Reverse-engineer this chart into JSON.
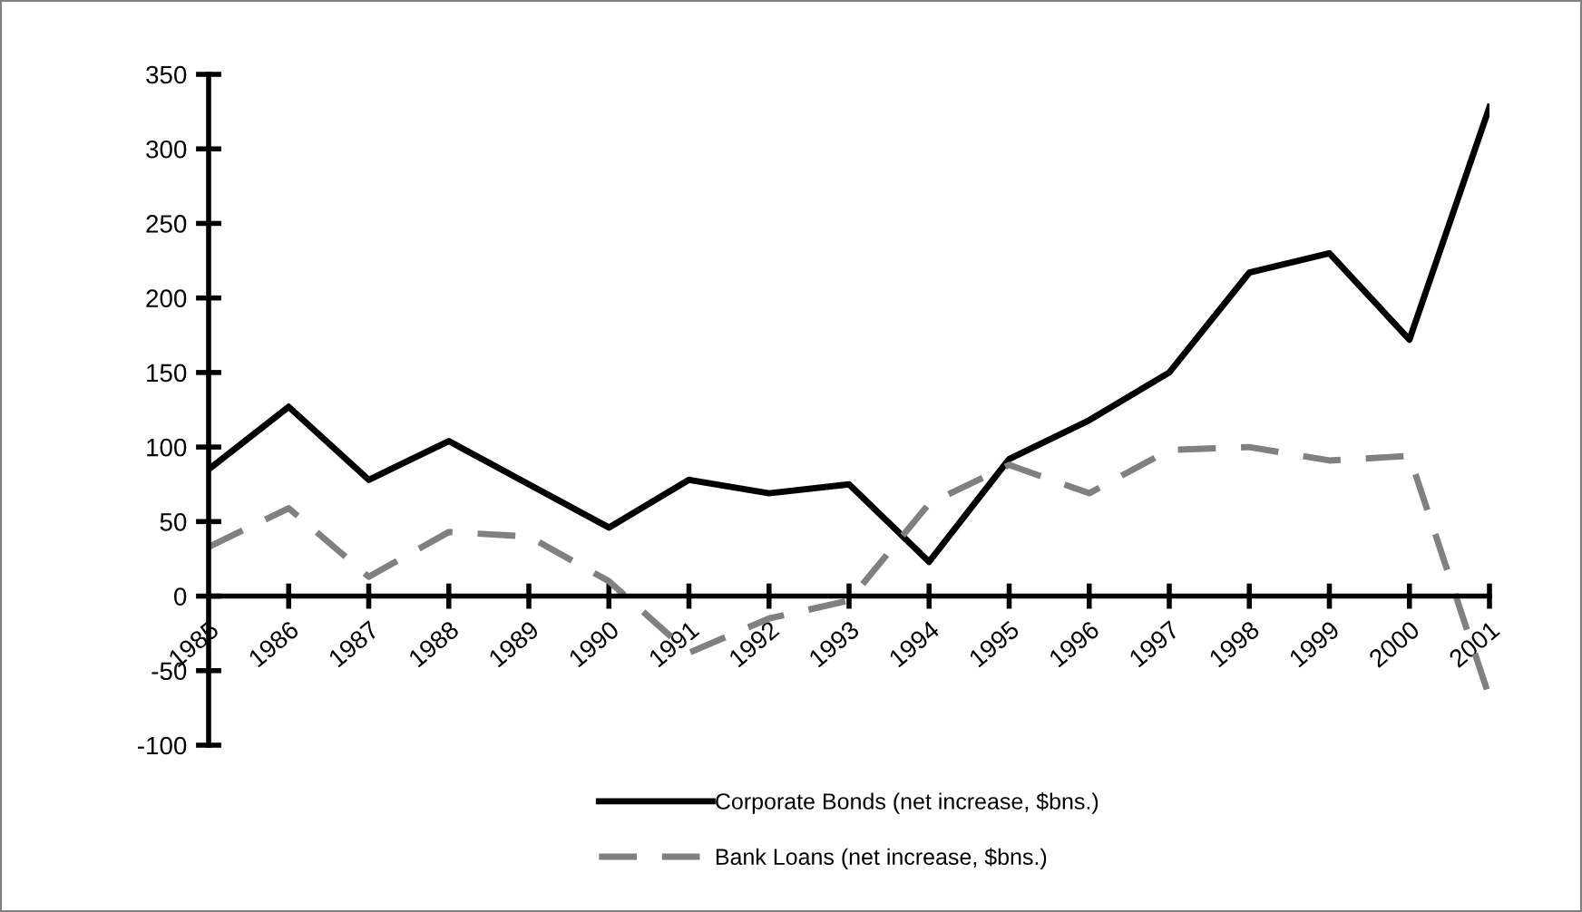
{
  "chart_data": {
    "type": "line",
    "categories": [
      "1985",
      "1986",
      "1987",
      "1988",
      "1989",
      "1990",
      "1991",
      "1992",
      "1993",
      "1994",
      "1995",
      "1996",
      "1997",
      "1998",
      "1999",
      "2000",
      "2001"
    ],
    "series": [
      {
        "name": "Corporate Bonds (net increase, $bns.)",
        "color": "#000000",
        "line_style": "solid",
        "values": [
          85,
          127,
          78,
          104,
          75,
          46,
          78,
          69,
          75,
          23,
          92,
          118,
          150,
          217,
          230,
          172,
          328
        ]
      },
      {
        "name": "Bank Loans (net increase, $bns.)",
        "color": "#808080",
        "line_style": "dashed",
        "values": [
          33,
          59,
          13,
          43,
          40,
          10,
          -38,
          -15,
          -3,
          62,
          88,
          69,
          98,
          100,
          91,
          94,
          -68
        ]
      }
    ],
    "ylim": [
      -100,
      350
    ],
    "yticks": [
      -100,
      -50,
      0,
      50,
      100,
      150,
      200,
      250,
      300,
      350
    ],
    "grid": false,
    "legend": "bottom",
    "marker": "none"
  }
}
